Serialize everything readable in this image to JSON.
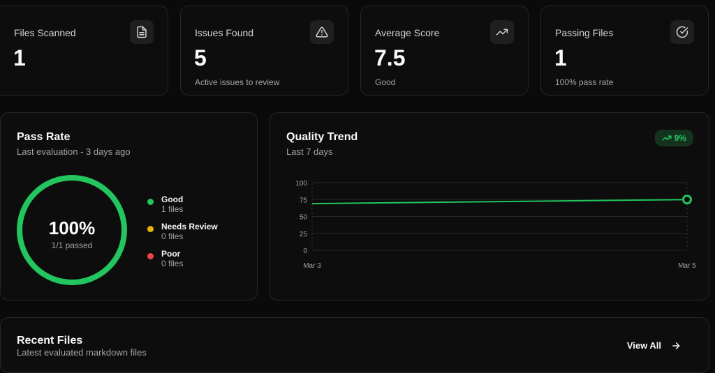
{
  "stats": [
    {
      "title": "Files Scanned",
      "value": "1",
      "sub": "",
      "icon": "file-icon"
    },
    {
      "title": "Issues Found",
      "value": "5",
      "sub": "Active issues to review",
      "icon": "warning-icon"
    },
    {
      "title": "Average Score",
      "value": "7.5",
      "sub": "Good",
      "icon": "trending-up-icon"
    },
    {
      "title": "Passing Files",
      "value": "1",
      "sub": "100% pass rate",
      "icon": "check-circle-icon"
    }
  ],
  "pass_rate": {
    "title": "Pass Rate",
    "subtitle": "Last evaluation - 3 days ago",
    "percent": "100%",
    "fraction": 1.0,
    "passed": "1/1 passed",
    "legend": [
      {
        "label": "Good",
        "count": "1 files",
        "color": "#22c55e"
      },
      {
        "label": "Needs Review",
        "count": "0 files",
        "color": "#eab308"
      },
      {
        "label": "Poor",
        "count": "0 files",
        "color": "#ef4444"
      }
    ]
  },
  "quality_trend": {
    "title": "Quality Trend",
    "subtitle": "Last 7 days",
    "badge": "9%",
    "accent": "#22c55e"
  },
  "chart_data": {
    "type": "line",
    "x": [
      "Mar 3",
      "Mar 5"
    ],
    "series": [
      {
        "values": [
          69,
          75
        ]
      }
    ],
    "ylim": [
      0,
      100
    ],
    "yticks": [
      0,
      25,
      50,
      75,
      100
    ],
    "grid": true
  },
  "recent_files": {
    "title": "Recent Files",
    "subtitle": "Latest evaluated markdown files",
    "view_all": "View All"
  }
}
